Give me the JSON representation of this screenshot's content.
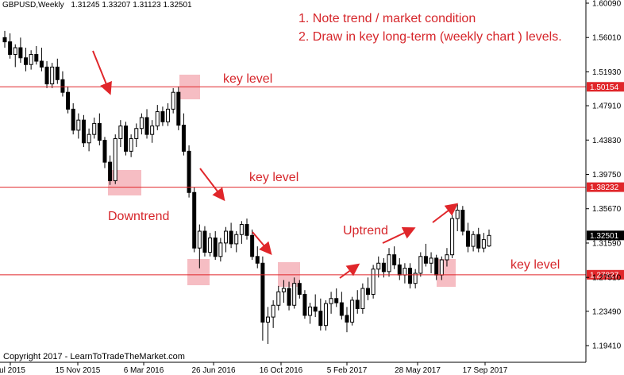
{
  "header": {
    "symbol": "GBPUSD,Weekly",
    "ohlc": "1.31245 1.33207 1.31123 1.32501"
  },
  "notes": {
    "line1": "1. Note trend / market condition",
    "line2": "2. Draw in key long-term (weekly chart ) levels."
  },
  "labels": {
    "downtrend": "Downtrend",
    "uptrend": "Uptrend",
    "key_level": "key level"
  },
  "copyright": "Copyright 2017 - LearnToTradeTheMarket.com",
  "colors": {
    "key_line": "#e0262a",
    "annotation": "#d6262b",
    "highlight": "#f5b2b8",
    "current_price_tag": "#000000"
  },
  "chart_data": {
    "type": "candlestick",
    "price_axis_ticks": [
      "1.60090",
      "1.56010",
      "1.51930",
      "1.47910",
      "1.43830",
      "1.39750",
      "1.35670",
      "1.31590",
      "1.27510",
      "1.23490",
      "1.19410"
    ],
    "time_axis_ticks": [
      "Jul 2015",
      "15 Nov 2015",
      "6 Mar 2016",
      "26 Jun 2016",
      "16 Oct 2016",
      "5 Feb 2017",
      "28 May 2017",
      "17 Sep 2017"
    ],
    "key_levels": [
      {
        "value": 1.50154,
        "label": "1.50154"
      },
      {
        "value": 1.38232,
        "label": "1.38232"
      },
      {
        "value": 1.27827,
        "label": "1.27827"
      }
    ],
    "current_price": {
      "value": 1.32501,
      "label": "1.32501"
    },
    "ylim": [
      1.185,
      1.605
    ],
    "candles": [
      [
        1.56,
        1.568,
        1.548,
        1.555
      ],
      [
        1.555,
        1.565,
        1.535,
        1.54
      ],
      [
        1.54,
        1.552,
        1.525,
        1.548
      ],
      [
        1.548,
        1.56,
        1.53,
        1.536
      ],
      [
        1.536,
        1.548,
        1.52,
        1.528
      ],
      [
        1.528,
        1.545,
        1.522,
        1.54
      ],
      [
        1.54,
        1.55,
        1.528,
        1.532
      ],
      [
        1.532,
        1.548,
        1.52,
        1.525
      ],
      [
        1.525,
        1.532,
        1.5,
        1.505
      ],
      [
        1.505,
        1.53,
        1.5,
        1.525
      ],
      [
        1.525,
        1.535,
        1.505,
        1.51
      ],
      [
        1.51,
        1.52,
        1.49,
        1.495
      ],
      [
        1.495,
        1.502,
        1.47,
        1.475
      ],
      [
        1.475,
        1.482,
        1.445,
        1.45
      ],
      [
        1.45,
        1.47,
        1.44,
        1.462
      ],
      [
        1.462,
        1.468,
        1.43,
        1.435
      ],
      [
        1.435,
        1.452,
        1.425,
        1.445
      ],
      [
        1.445,
        1.465,
        1.44,
        1.458
      ],
      [
        1.458,
        1.47,
        1.432,
        1.438
      ],
      [
        1.438,
        1.442,
        1.405,
        1.412
      ],
      [
        1.412,
        1.42,
        1.385,
        1.39
      ],
      [
        1.39,
        1.445,
        1.386,
        1.44
      ],
      [
        1.44,
        1.462,
        1.43,
        1.455
      ],
      [
        1.455,
        1.46,
        1.42,
        1.425
      ],
      [
        1.425,
        1.445,
        1.418,
        1.44
      ],
      [
        1.44,
        1.458,
        1.43,
        1.452
      ],
      [
        1.452,
        1.47,
        1.445,
        1.465
      ],
      [
        1.465,
        1.475,
        1.44,
        1.445
      ],
      [
        1.445,
        1.462,
        1.435,
        1.455
      ],
      [
        1.455,
        1.48,
        1.45,
        1.472
      ],
      [
        1.472,
        1.478,
        1.455,
        1.46
      ],
      [
        1.46,
        1.482,
        1.455,
        1.475
      ],
      [
        1.475,
        1.5,
        1.47,
        1.495
      ],
      [
        1.495,
        1.502,
        1.45,
        1.456
      ],
      [
        1.456,
        1.47,
        1.42,
        1.425
      ],
      [
        1.425,
        1.432,
        1.37,
        1.376
      ],
      [
        1.376,
        1.382,
        1.305,
        1.31
      ],
      [
        1.31,
        1.338,
        1.286,
        1.33
      ],
      [
        1.33,
        1.336,
        1.3,
        1.305
      ],
      [
        1.305,
        1.328,
        1.3,
        1.322
      ],
      [
        1.322,
        1.33,
        1.296,
        1.3
      ],
      [
        1.3,
        1.322,
        1.294,
        1.316
      ],
      [
        1.316,
        1.335,
        1.305,
        1.33
      ],
      [
        1.33,
        1.34,
        1.31,
        1.315
      ],
      [
        1.315,
        1.33,
        1.305,
        1.326
      ],
      [
        1.326,
        1.342,
        1.315,
        1.338
      ],
      [
        1.338,
        1.345,
        1.32,
        1.325
      ],
      [
        1.325,
        1.332,
        1.296,
        1.3
      ],
      [
        1.3,
        1.312,
        1.286,
        1.292
      ],
      [
        1.292,
        1.3,
        1.2,
        1.222
      ],
      [
        1.222,
        1.24,
        1.196,
        1.228
      ],
      [
        1.228,
        1.248,
        1.215,
        1.242
      ],
      [
        1.242,
        1.265,
        1.236,
        1.258
      ],
      [
        1.258,
        1.272,
        1.245,
        1.262
      ],
      [
        1.262,
        1.27,
        1.236,
        1.242
      ],
      [
        1.242,
        1.275,
        1.238,
        1.268
      ],
      [
        1.268,
        1.272,
        1.25,
        1.255
      ],
      [
        1.255,
        1.26,
        1.226,
        1.23
      ],
      [
        1.23,
        1.245,
        1.22,
        1.24
      ],
      [
        1.24,
        1.255,
        1.228,
        1.235
      ],
      [
        1.235,
        1.25,
        1.212,
        1.218
      ],
      [
        1.218,
        1.248,
        1.212,
        1.244
      ],
      [
        1.244,
        1.258,
        1.232,
        1.25
      ],
      [
        1.25,
        1.262,
        1.24,
        1.245
      ],
      [
        1.245,
        1.258,
        1.225,
        1.23
      ],
      [
        1.23,
        1.24,
        1.21,
        1.222
      ],
      [
        1.222,
        1.252,
        1.218,
        1.248
      ],
      [
        1.248,
        1.26,
        1.232,
        1.238
      ],
      [
        1.238,
        1.268,
        1.232,
        1.262
      ],
      [
        1.262,
        1.275,
        1.248,
        1.255
      ],
      [
        1.255,
        1.29,
        1.25,
        1.285
      ],
      [
        1.285,
        1.3,
        1.275,
        1.292
      ],
      [
        1.292,
        1.298,
        1.275,
        1.282
      ],
      [
        1.282,
        1.31,
        1.276,
        1.302
      ],
      [
        1.302,
        1.312,
        1.285,
        1.29
      ],
      [
        1.29,
        1.298,
        1.272,
        1.278
      ],
      [
        1.278,
        1.292,
        1.268,
        1.286
      ],
      [
        1.286,
        1.292,
        1.262,
        1.268
      ],
      [
        1.268,
        1.285,
        1.262,
        1.28
      ],
      [
        1.28,
        1.305,
        1.276,
        1.3
      ],
      [
        1.3,
        1.315,
        1.288,
        1.292
      ],
      [
        1.292,
        1.305,
        1.28,
        1.298
      ],
      [
        1.298,
        1.302,
        1.272,
        1.278
      ],
      [
        1.278,
        1.3,
        1.272,
        1.296
      ],
      [
        1.296,
        1.31,
        1.288,
        1.302
      ],
      [
        1.302,
        1.35,
        1.298,
        1.345
      ],
      [
        1.345,
        1.362,
        1.33,
        1.355
      ],
      [
        1.355,
        1.36,
        1.325,
        1.33
      ],
      [
        1.33,
        1.34,
        1.305,
        1.312
      ],
      [
        1.312,
        1.33,
        1.306,
        1.326
      ],
      [
        1.326,
        1.334,
        1.305,
        1.31
      ],
      [
        1.31,
        1.328,
        1.305,
        1.32
      ],
      [
        1.31245,
        1.33207,
        1.31123,
        1.32501
      ]
    ]
  }
}
